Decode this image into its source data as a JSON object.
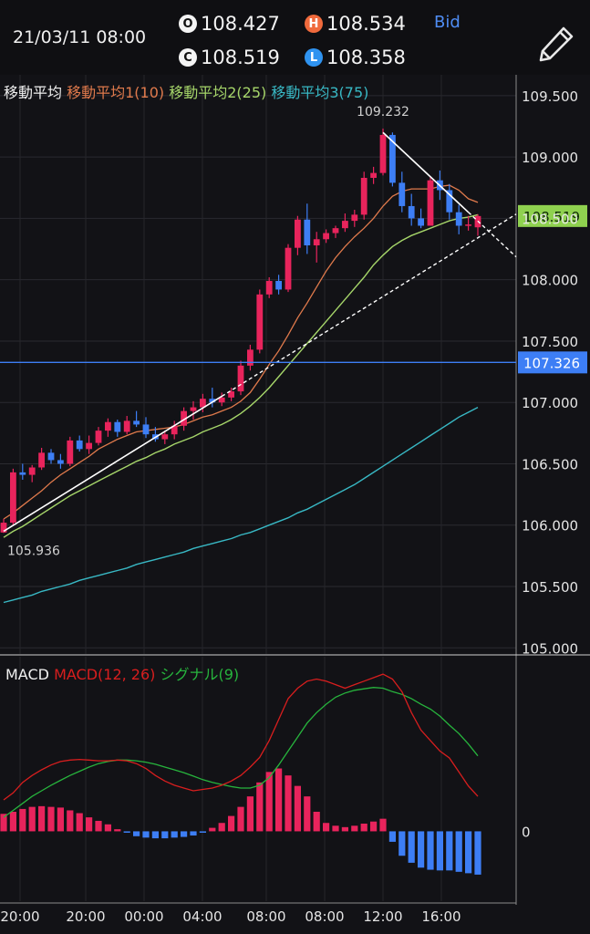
{
  "header": {
    "datetime": "21/03/11 08:00",
    "open": {
      "badge": "O",
      "value": "108.427"
    },
    "high": {
      "badge": "H",
      "value": "108.534"
    },
    "close": {
      "badge": "C",
      "value": "108.519"
    },
    "low": {
      "badge": "L",
      "value": "108.358"
    },
    "price_type": "Bid",
    "edit_icon": "pencil-icon"
  },
  "legend": {
    "ma_title": "移動平均",
    "ma1": "移動平均1(10)",
    "ma2": "移動平均2(25)",
    "ma3": "移動平均3(75)",
    "macd_title": "MACD",
    "macd": "MACD(12, 26)",
    "signal": "シグナル(9)"
  },
  "colors": {
    "up": "#e8245c",
    "down": "#3d7ef5",
    "ma1": "#e07a4c",
    "ma2": "#a6d66a",
    "ma3": "#38b8c4",
    "macd": "#d81e1e",
    "signal": "#27b43d",
    "current_price_tag": "#8fd14f",
    "horizontal_line": "#3d7ef5"
  },
  "chart_data": [
    {
      "type": "candlestick",
      "title": "移動平均",
      "y_ticks": [
        "105.000",
        "105.500",
        "106.000",
        "106.500",
        "107.000",
        "107.500",
        "108.000",
        "108.500",
        "109.000",
        "109.500"
      ],
      "ylim": [
        104.95,
        109.67
      ],
      "x_tick_labels": [
        "20:00",
        "20:00",
        "00:00",
        "04:00",
        "08:00",
        "08:00",
        "12:00",
        "16:00"
      ],
      "annotations": {
        "high_label": "109.232",
        "low_label": "105.936",
        "current_price": "108.519",
        "horizontal_line_price": "107.326"
      },
      "series_names": [
        "移動平均1(10)",
        "移動平均2(25)",
        "移動平均3(75)"
      ],
      "ohlc": [
        [
          105.94,
          106.05,
          105.936,
          106.02
        ],
        [
          106.02,
          106.46,
          106.0,
          106.43
        ],
        [
          106.43,
          106.5,
          106.37,
          106.41
        ],
        [
          106.41,
          106.49,
          106.35,
          106.47
        ],
        [
          106.47,
          106.63,
          106.45,
          106.59
        ],
        [
          106.59,
          106.62,
          106.5,
          106.53
        ],
        [
          106.53,
          106.58,
          106.46,
          106.5
        ],
        [
          106.5,
          106.72,
          106.48,
          106.69
        ],
        [
          106.69,
          106.73,
          106.6,
          106.62
        ],
        [
          106.62,
          106.73,
          106.58,
          106.67
        ],
        [
          106.67,
          106.8,
          106.65,
          106.77
        ],
        [
          106.77,
          106.87,
          106.72,
          106.84
        ],
        [
          106.84,
          106.86,
          106.72,
          106.76
        ],
        [
          106.76,
          106.89,
          106.74,
          106.85
        ],
        [
          106.85,
          106.93,
          106.8,
          106.82
        ],
        [
          106.82,
          106.88,
          106.71,
          106.74
        ],
        [
          106.74,
          106.8,
          106.68,
          106.7
        ],
        [
          106.7,
          106.77,
          106.66,
          106.74
        ],
        [
          106.74,
          106.85,
          106.7,
          106.81
        ],
        [
          106.81,
          106.96,
          106.77,
          106.93
        ],
        [
          106.93,
          107.01,
          106.86,
          106.96
        ],
        [
          106.96,
          107.07,
          106.92,
          107.03
        ],
        [
          107.03,
          107.12,
          106.96,
          107.0
        ],
        [
          107.0,
          107.08,
          106.97,
          107.04
        ],
        [
          107.04,
          107.12,
          107.01,
          107.09
        ],
        [
          107.09,
          107.34,
          107.06,
          107.3
        ],
        [
          107.3,
          107.47,
          107.26,
          107.43
        ],
        [
          107.43,
          107.92,
          107.4,
          107.88
        ],
        [
          107.88,
          108.02,
          107.85,
          107.99
        ],
        [
          107.99,
          108.04,
          107.88,
          107.92
        ],
        [
          107.92,
          108.29,
          107.9,
          108.26
        ],
        [
          108.26,
          108.52,
          108.2,
          108.49
        ],
        [
          108.49,
          108.62,
          108.21,
          108.28
        ],
        [
          108.28,
          108.39,
          108.14,
          108.33
        ],
        [
          108.33,
          108.41,
          108.3,
          108.38
        ],
        [
          108.38,
          108.44,
          108.34,
          108.42
        ],
        [
          108.42,
          108.54,
          108.39,
          108.48
        ],
        [
          108.48,
          108.57,
          108.43,
          108.53
        ],
        [
          108.53,
          108.88,
          108.49,
          108.83
        ],
        [
          108.83,
          108.92,
          108.78,
          108.87
        ],
        [
          108.87,
          109.232,
          108.85,
          109.18
        ],
        [
          109.18,
          109.2,
          108.76,
          108.79
        ],
        [
          108.79,
          108.88,
          108.55,
          108.6
        ],
        [
          108.6,
          108.7,
          108.44,
          108.5
        ],
        [
          108.5,
          108.58,
          108.42,
          108.44
        ],
        [
          108.44,
          108.84,
          108.44,
          108.81
        ],
        [
          108.81,
          108.89,
          108.65,
          108.73
        ],
        [
          108.73,
          108.78,
          108.49,
          108.55
        ],
        [
          108.55,
          108.61,
          108.37,
          108.44
        ],
        [
          108.44,
          108.52,
          108.4,
          108.45
        ],
        [
          108.427,
          108.534,
          108.358,
          108.519
        ]
      ],
      "ma1": [
        106.05,
        106.1,
        106.16,
        106.22,
        106.28,
        106.35,
        106.41,
        106.46,
        106.51,
        106.56,
        106.62,
        106.66,
        106.7,
        106.73,
        106.76,
        106.77,
        106.78,
        106.79,
        106.8,
        106.82,
        106.85,
        106.88,
        106.9,
        106.93,
        106.96,
        107.01,
        107.08,
        107.19,
        107.31,
        107.42,
        107.55,
        107.69,
        107.81,
        107.94,
        108.07,
        108.18,
        108.27,
        108.35,
        108.42,
        108.5,
        108.6,
        108.68,
        108.72,
        108.74,
        108.74,
        108.74,
        108.76,
        108.77,
        108.73,
        108.66,
        108.63
      ],
      "ma2": [
        105.9,
        105.95,
        105.99,
        106.04,
        106.09,
        106.14,
        106.19,
        106.24,
        106.28,
        106.32,
        106.36,
        106.4,
        106.44,
        106.48,
        106.52,
        106.55,
        106.59,
        106.62,
        106.66,
        106.69,
        106.72,
        106.76,
        106.79,
        106.82,
        106.86,
        106.91,
        106.97,
        107.04,
        107.12,
        107.21,
        107.3,
        107.39,
        107.48,
        107.57,
        107.66,
        107.75,
        107.84,
        107.93,
        108.02,
        108.12,
        108.2,
        108.27,
        108.32,
        108.36,
        108.39,
        108.42,
        108.45,
        108.48,
        108.5,
        108.51,
        108.53
      ],
      "ma3": [
        105.37,
        105.39,
        105.41,
        105.43,
        105.46,
        105.48,
        105.5,
        105.52,
        105.55,
        105.57,
        105.59,
        105.61,
        105.63,
        105.65,
        105.68,
        105.7,
        105.72,
        105.74,
        105.76,
        105.78,
        105.81,
        105.83,
        105.85,
        105.87,
        105.89,
        105.92,
        105.94,
        105.97,
        106.0,
        106.03,
        106.06,
        106.1,
        106.13,
        106.17,
        106.21,
        106.25,
        106.29,
        106.33,
        106.38,
        106.43,
        106.48,
        106.53,
        106.58,
        106.63,
        106.68,
        106.73,
        106.78,
        106.83,
        106.88,
        106.92,
        106.96
      ]
    },
    {
      "type": "macd",
      "title": "MACD",
      "series_names": [
        "MACD(12, 26)",
        "シグナル(9)"
      ],
      "y_ticks": [
        "0"
      ],
      "ylim": [
        -1.0,
        2.5
      ],
      "macd": [
        0.45,
        0.55,
        0.7,
        0.8,
        0.88,
        0.95,
        1.0,
        1.02,
        1.03,
        1.02,
        1.01,
        1.01,
        1.02,
        1.01,
        0.97,
        0.9,
        0.8,
        0.72,
        0.66,
        0.62,
        0.58,
        0.6,
        0.62,
        0.66,
        0.72,
        0.8,
        0.92,
        1.06,
        1.3,
        1.6,
        1.9,
        2.05,
        2.15,
        2.18,
        2.15,
        2.1,
        2.05,
        2.1,
        2.15,
        2.2,
        2.25,
        2.18,
        2.0,
        1.7,
        1.45,
        1.3,
        1.15,
        1.05,
        0.85,
        0.65,
        0.5
      ],
      "signal": [
        0.2,
        0.3,
        0.4,
        0.5,
        0.58,
        0.66,
        0.73,
        0.8,
        0.86,
        0.92,
        0.97,
        1.0,
        1.02,
        1.02,
        1.01,
        0.99,
        0.96,
        0.92,
        0.88,
        0.84,
        0.79,
        0.74,
        0.7,
        0.67,
        0.64,
        0.62,
        0.62,
        0.66,
        0.77,
        0.95,
        1.15,
        1.35,
        1.55,
        1.7,
        1.82,
        1.92,
        1.98,
        2.02,
        2.04,
        2.06,
        2.05,
        2.0,
        1.96,
        1.9,
        1.82,
        1.75,
        1.65,
        1.52,
        1.4,
        1.25,
        1.08
      ],
      "histogram": [
        0.25,
        0.28,
        0.32,
        0.35,
        0.36,
        0.35,
        0.34,
        0.3,
        0.26,
        0.2,
        0.15,
        0.1,
        0.03,
        -0.02,
        -0.07,
        -0.09,
        -0.1,
        -0.1,
        -0.09,
        -0.08,
        -0.06,
        -0.02,
        0.05,
        0.12,
        0.22,
        0.35,
        0.5,
        0.7,
        0.85,
        0.9,
        0.8,
        0.65,
        0.5,
        0.28,
        0.12,
        0.08,
        0.06,
        0.08,
        0.11,
        0.14,
        0.18,
        -0.15,
        -0.35,
        -0.45,
        -0.52,
        -0.55,
        -0.56,
        -0.56,
        -0.58,
        -0.6,
        -0.62
      ]
    }
  ]
}
